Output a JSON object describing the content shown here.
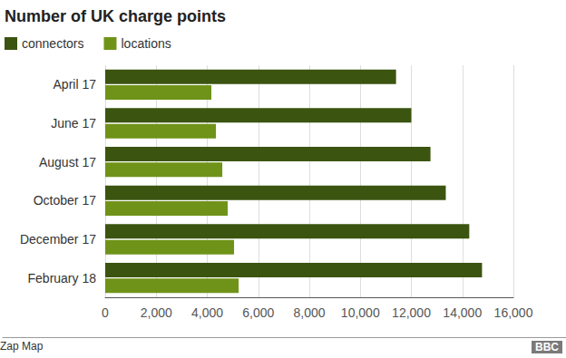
{
  "chart_data": {
    "type": "bar",
    "title": "Number of UK charge points",
    "orientation": "horizontal",
    "categories": [
      "April 17",
      "June 17",
      "August 17",
      "October 17",
      "December 17",
      "February 18"
    ],
    "series": [
      {
        "name": "connectors",
        "color": "#3b5410",
        "values": [
          11400,
          12000,
          12750,
          13350,
          14270,
          14770
        ]
      },
      {
        "name": "locations",
        "color": "#6f9318",
        "values": [
          4160,
          4340,
          4590,
          4800,
          5050,
          5230
        ]
      }
    ],
    "xlim": [
      0,
      16000
    ],
    "xticks": [
      0,
      {
        "value": 2000,
        "label": "2,000"
      },
      {
        "value": 4000,
        "label": "4,000"
      },
      {
        "value": 6000,
        "label": "6,000"
      },
      {
        "value": 8000,
        "label": "8,000"
      },
      {
        "value": 10000,
        "label": "10,000"
      },
      {
        "value": 12000,
        "label": "12,000"
      },
      {
        "value": 14000,
        "label": "14,000"
      },
      {
        "value": 16000,
        "label": "16,000"
      }
    ],
    "grid": true,
    "legend": "top-left",
    "source": "Zap Map",
    "brand": "BBC"
  }
}
